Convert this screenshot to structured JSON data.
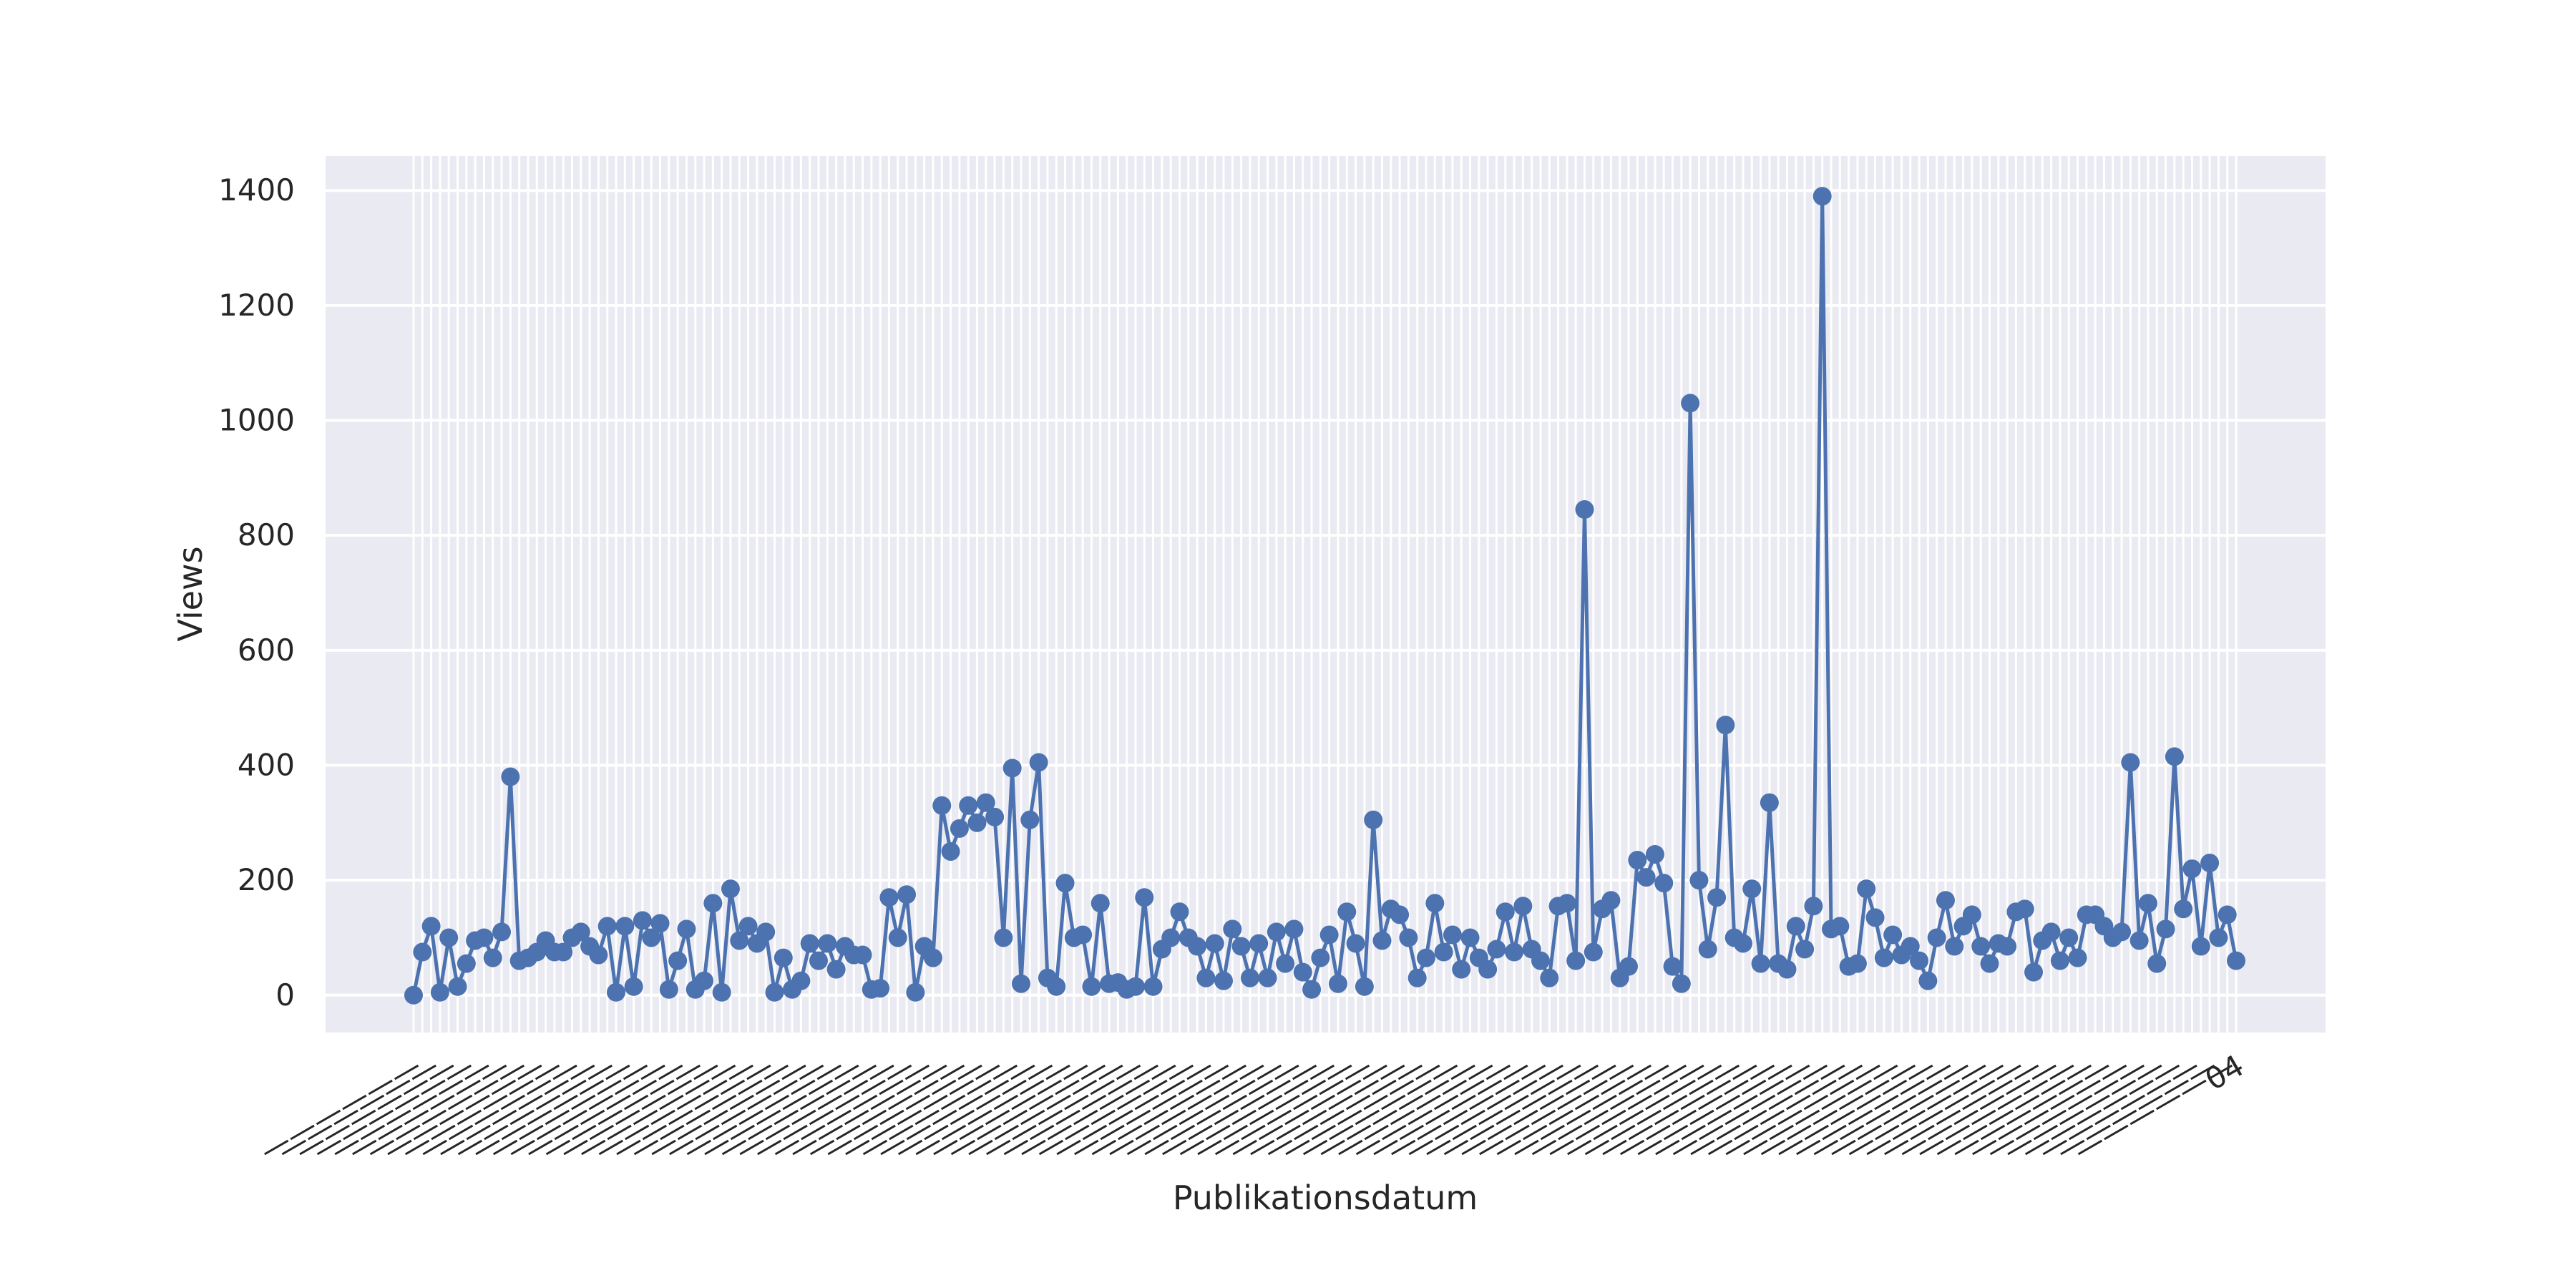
{
  "chart_data": {
    "type": "line",
    "title": "",
    "xlabel": "Publikationsdatum",
    "ylabel": "Views",
    "ylim": [
      -65,
      1460
    ],
    "yticks": [
      0,
      200,
      400,
      600,
      800,
      1000,
      1200,
      1400
    ],
    "grid": true,
    "legend": "none",
    "x_tick_labels_legible": false,
    "x_tick_label_last_visible": "04",
    "colors": {
      "line": "#4c72b0",
      "background": "#eaeaf2",
      "grid": "#ffffff"
    },
    "series": [
      {
        "values": [
          0,
          75,
          120,
          5,
          100,
          15,
          55,
          95,
          100,
          65,
          110,
          380,
          60,
          65,
          75,
          95,
          75,
          75,
          100,
          110,
          85,
          70,
          120,
          5,
          120,
          15,
          130,
          100,
          125,
          10,
          60,
          115,
          10,
          25,
          160,
          5,
          185,
          95,
          120,
          90,
          110,
          5,
          65,
          10,
          25,
          90,
          60,
          90,
          45,
          85,
          70,
          70,
          10,
          12,
          170,
          100,
          175,
          5,
          85,
          65,
          330,
          250,
          290,
          330,
          300,
          335,
          310,
          100,
          395,
          20,
          305,
          405,
          30,
          15,
          195,
          100,
          105,
          15,
          160,
          20,
          22,
          10,
          15,
          170,
          15,
          80,
          100,
          145,
          100,
          85,
          30,
          90,
          25,
          115,
          85,
          30,
          90,
          30,
          110,
          55,
          115,
          40,
          10,
          65,
          105,
          20,
          145,
          90,
          15,
          305,
          95,
          150,
          140,
          100,
          30,
          65,
          160,
          75,
          105,
          45,
          100,
          65,
          45,
          80,
          145,
          75,
          155,
          80,
          60,
          30,
          155,
          160,
          60,
          845,
          75,
          150,
          165,
          30,
          50,
          235,
          205,
          245,
          195,
          50,
          20,
          1030,
          200,
          80,
          170,
          470,
          100,
          90,
          185,
          55,
          335,
          55,
          45,
          120,
          80,
          155,
          1390,
          115,
          120,
          50,
          55,
          185,
          135,
          65,
          105,
          70,
          85,
          60,
          25,
          100,
          165,
          85,
          120,
          140,
          85,
          55,
          90,
          85,
          145,
          150,
          40,
          95,
          110,
          60,
          100,
          65,
          140,
          140,
          120,
          100,
          110,
          405,
          95,
          160,
          55,
          115,
          415,
          150,
          220,
          85,
          230,
          100,
          140,
          60
        ]
      }
    ]
  }
}
